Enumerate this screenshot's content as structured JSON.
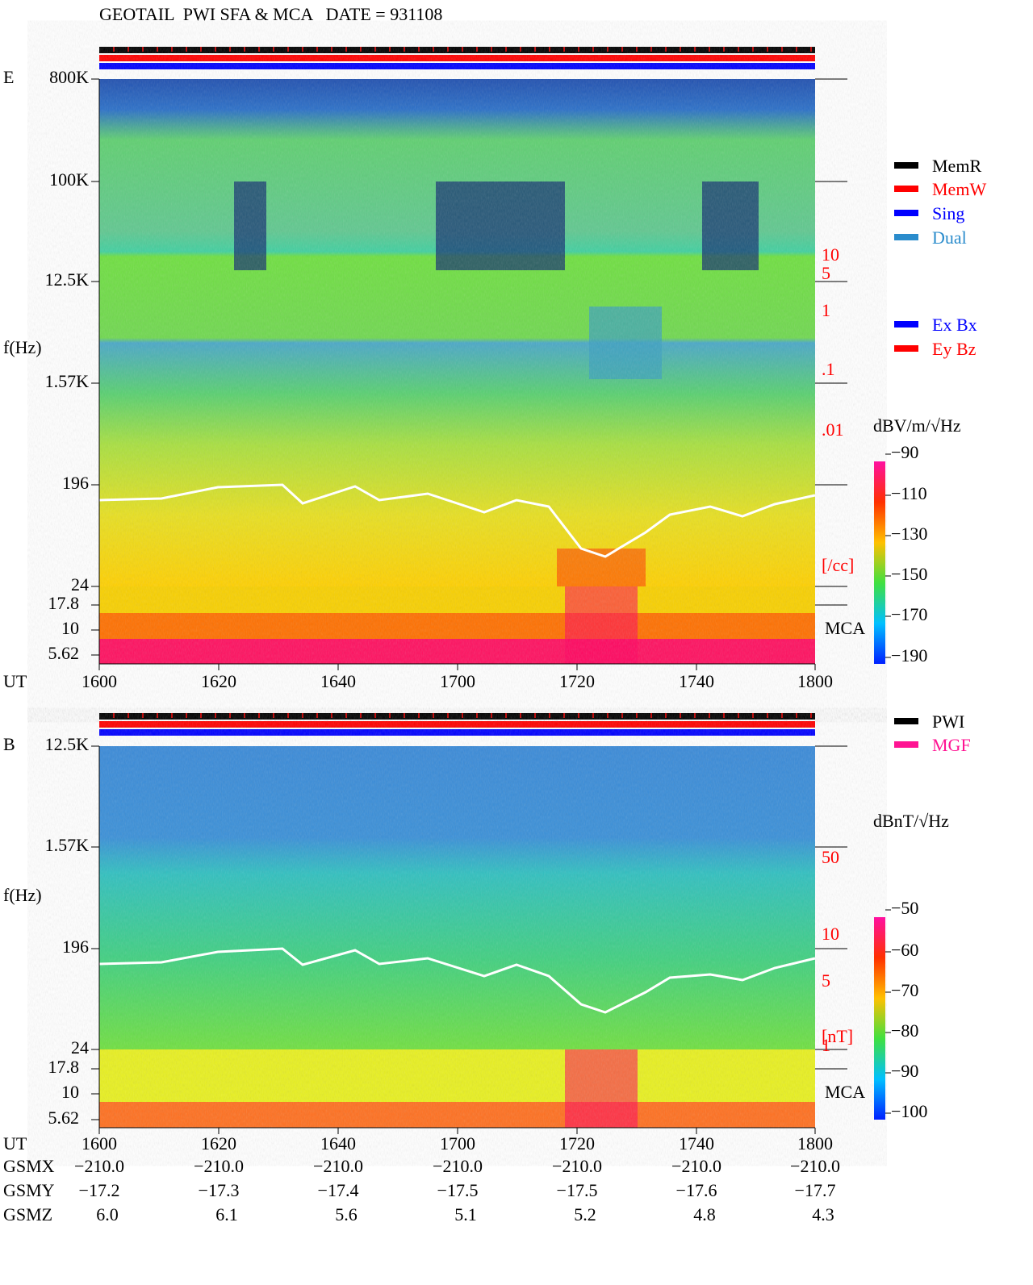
{
  "header": {
    "title": "GEOTAIL  PWI SFA & MCA   DATE = 931108"
  },
  "panels": [
    {
      "label": "E",
      "y_label": "f(Hz)",
      "freq_ticks": [
        "800K",
        "100K",
        "12.5K",
        "1.57K",
        "196",
        "24",
        "17.8",
        "10",
        "5.62"
      ],
      "right_ticks": [
        "10",
        "5",
        "1",
        ".1",
        ".01",
        "[/cc]"
      ],
      "mca_label": "MCA",
      "time_label": "UT",
      "time_ticks": [
        "1600",
        "1620",
        "1640",
        "1700",
        "1720",
        "1740",
        "1800"
      ],
      "legend": [
        {
          "name": "MemR",
          "color": "#000000"
        },
        {
          "name": "MemW",
          "color": "#ff0000"
        },
        {
          "name": "Sing",
          "color": "#0000ff"
        },
        {
          "name": "Dual",
          "color": "#2a8ccc"
        }
      ],
      "legend2": [
        {
          "name": "Ex Bx",
          "color": "#0000ff"
        },
        {
          "name": "Ey Bz",
          "color": "#ff0000"
        }
      ],
      "colorbar_unit": "dBV/m/√Hz",
      "colorbar_ticks": [
        "−90",
        "−110",
        "−130",
        "−150",
        "−170",
        "−190"
      ]
    },
    {
      "label": "B",
      "y_label": "f(Hz)",
      "freq_ticks": [
        "12.5K",
        "1.57K",
        "196",
        "24",
        "17.8",
        "10",
        "5.62"
      ],
      "right_ticks": [
        "50",
        "10",
        "5",
        "1",
        "[nT]"
      ],
      "mca_label": "MCA",
      "time_label": "UT",
      "time_ticks": [
        "1600",
        "1620",
        "1640",
        "1700",
        "1720",
        "1740",
        "1800"
      ],
      "legend": [
        {
          "name": "PWI",
          "color": "#000000"
        },
        {
          "name": "MGF",
          "color": "#ff1493"
        }
      ],
      "colorbar_unit": "dBnT/√Hz",
      "colorbar_ticks": [
        "−50",
        "−60",
        "−70",
        "−80",
        "−90",
        "−100"
      ]
    }
  ],
  "orbit": {
    "rows": [
      {
        "label": "GSMX",
        "values": [
          "−210.0",
          "−210.0",
          "−210.0",
          "−210.0",
          "−210.0",
          "−210.0",
          "−210.0"
        ]
      },
      {
        "label": "GSMY",
        "values": [
          "−17.2",
          "−17.3",
          "−17.4",
          "−17.5",
          "−17.5",
          "−17.6",
          "−17.7"
        ]
      },
      {
        "label": "GSMZ",
        "values": [
          "6.0",
          "6.1",
          "5.6",
          "5.1",
          "5.2",
          "4.8",
          "4.3"
        ]
      }
    ]
  }
}
